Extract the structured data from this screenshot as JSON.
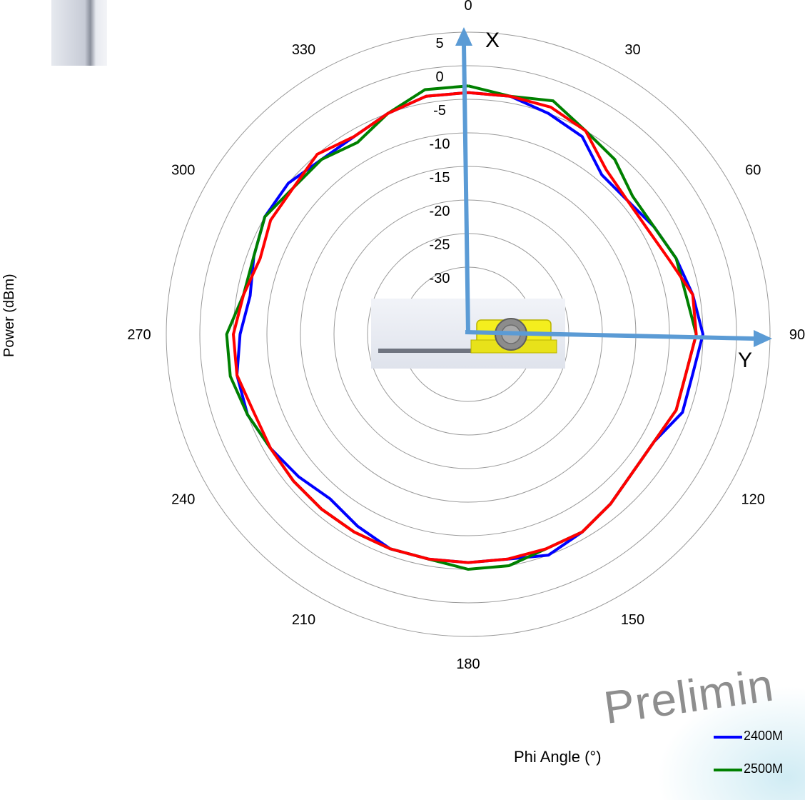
{
  "chart_data": {
    "type": "polar-line",
    "axis_label_left": "Power (dBm)",
    "axis_label_bottom": "Phi  Angle (°)",
    "radial_range": [
      -40,
      5
    ],
    "radial_ticks": [
      5,
      0,
      -5,
      -10,
      -15,
      -20,
      -25,
      -30,
      -35,
      -40
    ],
    "angle_ticks": [
      0,
      30,
      60,
      90,
      120,
      150,
      180,
      210,
      240,
      270,
      300,
      330
    ],
    "angle_direction": "clockwise, 0 at top",
    "angles": [
      0,
      10,
      20,
      30,
      40,
      50,
      60,
      70,
      80,
      90,
      100,
      110,
      120,
      130,
      140,
      150,
      160,
      170,
      180,
      190,
      200,
      210,
      220,
      230,
      240,
      250,
      260,
      270,
      280,
      290,
      300,
      310,
      320,
      330,
      340,
      350
    ],
    "series": [
      {
        "name": "2400M",
        "color": "#0000ff",
        "values": [
          -4,
          -4,
          -5,
          -6,
          -9,
          -9,
          -8,
          -7,
          -6,
          -5,
          -6,
          -6,
          -8,
          -8,
          -7,
          -6,
          -5,
          -6,
          -6,
          -6,
          -6,
          -7,
          -8,
          -7,
          -6,
          -5,
          -5,
          -6,
          -7,
          -6,
          -5,
          -5,
          -6,
          -6,
          -5,
          -4
        ]
      },
      {
        "name": "2500M",
        "color": "#008000",
        "values": [
          -3,
          -4,
          -3,
          -5,
          -6,
          -8,
          -8,
          -7,
          -7,
          -6,
          -7,
          -7,
          -8,
          -8,
          -7,
          -6,
          -6,
          -5,
          -5,
          -6,
          -6,
          -6,
          -6,
          -6,
          -6,
          -5,
          -4,
          -4,
          -6,
          -6,
          -5,
          -6,
          -6,
          -7,
          -5,
          -3
        ]
      },
      {
        "name": "",
        "color": "#ff0000",
        "values": [
          -4,
          -4,
          -4,
          -5,
          -8,
          -9,
          -9,
          -8,
          -6,
          -6,
          -7,
          -7,
          -8,
          -8,
          -7,
          -6,
          -6,
          -6,
          -6,
          -6,
          -6,
          -6,
          -6,
          -6,
          -6,
          -6,
          -5,
          -5,
          -6,
          -7,
          -6,
          -6,
          -5,
          -6,
          -5,
          -4
        ]
      }
    ]
  },
  "overlay": {
    "arrow_x_label": "X",
    "arrow_y_label": "Y",
    "arrow_color": "#5b9bd5",
    "watermark": "Prelimin",
    "legend": [
      "2400M",
      "2500M"
    ]
  }
}
